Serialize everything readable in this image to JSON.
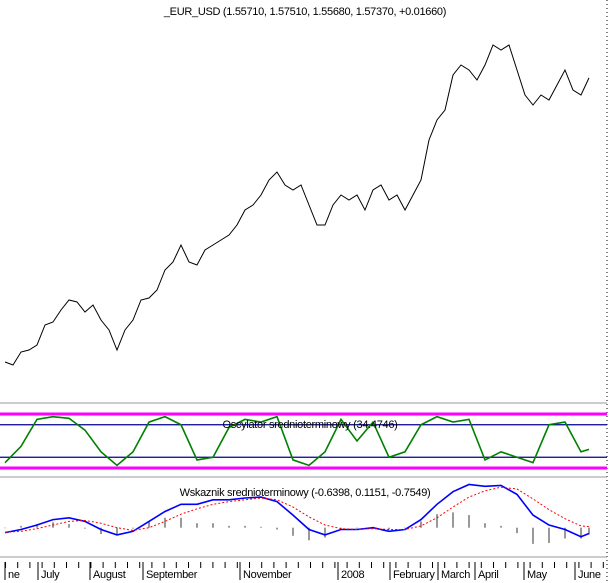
{
  "chart_data": [
    {
      "type": "line",
      "title": "_EUR_USD (1.55710, 1.57510, 1.55680, 1.57370, +0.01660)",
      "x": [
        0,
        1,
        2,
        3,
        4,
        5,
        6,
        7,
        8,
        9,
        10,
        11,
        12,
        13,
        14,
        15,
        16,
        17,
        18,
        19,
        20,
        21,
        22,
        23,
        24,
        25,
        26,
        27,
        28,
        29,
        30,
        31,
        32,
        33,
        34,
        35,
        36,
        37,
        38,
        39,
        40,
        41,
        42,
        43,
        44,
        45,
        46,
        47,
        48,
        49,
        50,
        51,
        52,
        53,
        54,
        55,
        56,
        57,
        58,
        59,
        60,
        61,
        62,
        63,
        64,
        65,
        66,
        67,
        68,
        69,
        70,
        71,
        72,
        73
      ],
      "values": [
        1.3464,
        1.344,
        1.3544,
        1.356,
        1.36,
        1.376,
        1.3784,
        1.388,
        1.396,
        1.3944,
        1.3864,
        1.392,
        1.38,
        1.372,
        1.356,
        1.372,
        1.38,
        1.396,
        1.3976,
        1.404,
        1.42,
        1.4264,
        1.44,
        1.4264,
        1.424,
        1.436,
        1.44,
        1.444,
        1.448,
        1.456,
        1.468,
        1.472,
        1.48,
        1.492,
        1.4984,
        1.488,
        1.484,
        1.488,
        1.472,
        1.456,
        1.456,
        1.472,
        1.48,
        1.476,
        1.48,
        1.468,
        1.484,
        1.488,
        1.476,
        1.48,
        1.468,
        1.48,
        1.492,
        1.524,
        1.54,
        1.548,
        1.576,
        1.584,
        1.58,
        1.572,
        1.584,
        1.6,
        1.596,
        1.6,
        1.58,
        1.56,
        1.552,
        1.56,
        1.556,
        1.568,
        1.58,
        1.564,
        1.56,
        1.5737
      ],
      "color": "#000000",
      "xlim": [
        0,
        73
      ],
      "ylim": [
        1.32,
        1.62
      ]
    },
    {
      "type": "line",
      "title": "Oscylator srednioterminowy (34.4746)",
      "x": [
        0,
        2,
        4,
        6,
        8,
        10,
        12,
        14,
        16,
        18,
        20,
        22,
        24,
        26,
        28,
        30,
        32,
        34,
        36,
        38,
        40,
        42,
        44,
        46,
        48,
        50,
        52,
        54,
        56,
        58,
        60,
        62,
        64,
        66,
        68,
        70,
        72,
        73
      ],
      "values": [
        10,
        40,
        90,
        95,
        92,
        70,
        30,
        5,
        30,
        85,
        95,
        80,
        15,
        20,
        75,
        90,
        85,
        95,
        15,
        5,
        30,
        90,
        50,
        85,
        20,
        30,
        80,
        95,
        85,
        90,
        15,
        30,
        20,
        10,
        80,
        85,
        30,
        34.4746
      ],
      "color": "#008000",
      "levels": [
        {
          "value": 100,
          "color": "#ff00ff"
        },
        {
          "value": 80,
          "color": "#00008b"
        },
        {
          "value": 20,
          "color": "#00008b"
        },
        {
          "value": 0,
          "color": "#ff00ff"
        }
      ],
      "xlim": [
        0,
        73
      ],
      "ylim": [
        -11,
        111
      ]
    },
    {
      "type": "line",
      "title": "Wskaznik srednioterminowy (-0.6398, 0.1151, -0.7549)",
      "x": [
        0,
        2,
        4,
        6,
        8,
        10,
        12,
        14,
        16,
        18,
        20,
        22,
        24,
        26,
        28,
        30,
        32,
        34,
        36,
        38,
        40,
        42,
        44,
        46,
        48,
        50,
        52,
        54,
        56,
        58,
        60,
        62,
        64,
        66,
        68,
        70,
        72,
        73
      ],
      "series": [
        {
          "type": "bar",
          "color": "#999999",
          "values": [
            -0.05,
            0.2,
            0.4,
            0.6,
            0.4,
            -0.1,
            -0.7,
            -0.8,
            -0.1,
            0.7,
            1.1,
            1.1,
            0.5,
            0.5,
            0.2,
            0.2,
            0.1,
            -0.2,
            -0.9,
            -1.4,
            -1.1,
            -0.1,
            0.0,
            0.1,
            -0.2,
            0.0,
            0.7,
            1.5,
            1.7,
            1.4,
            0.5,
            0.2,
            -0.6,
            -1.8,
            -1.7,
            -1.2,
            -1.2,
            -0.7549
          ]
        },
        {
          "type": "line",
          "color": "#0000ff",
          "values": [
            -0.55,
            -0.2,
            0.3,
            0.9,
            1.1,
            0.7,
            -0.2,
            -0.8,
            -0.4,
            0.7,
            1.8,
            2.6,
            2.6,
            3.1,
            3.1,
            3.3,
            3.4,
            2.9,
            1.4,
            -0.2,
            -0.8,
            -0.2,
            -0.2,
            0,
            -0.4,
            -0.2,
            0.9,
            2.6,
            4.0,
            4.8,
            4.6,
            4.7,
            3.7,
            1.4,
            0.3,
            -0.2,
            -1.0,
            -0.6398
          ]
        },
        {
          "type": "line",
          "color": "#ff0000",
          "dash": true,
          "values": [
            -0.5,
            -0.4,
            -0.1,
            0.3,
            0.7,
            0.8,
            0.5,
            0.0,
            -0.3,
            0.0,
            0.7,
            1.5,
            2.1,
            2.6,
            2.9,
            3.1,
            3.3,
            3.1,
            2.3,
            1.2,
            0.3,
            -0.1,
            -0.2,
            -0.1,
            -0.2,
            -0.2,
            0.2,
            1.1,
            2.3,
            3.4,
            4.1,
            4.5,
            4.3,
            3.2,
            2.0,
            1.0,
            0.2,
            0.1151
          ]
        }
      ],
      "xlim": [
        0,
        73
      ],
      "ylim": [
        -2.7,
        5.3
      ],
      "xticks": [
        {
          "value": 0,
          "label": "ne"
        },
        {
          "value": 4.125,
          "label": "July"
        },
        {
          "value": 10.625,
          "label": "August"
        },
        {
          "value": 17.25,
          "label": "September"
        },
        {
          "value": 29.375,
          "label": "November"
        },
        {
          "value": 41.625,
          "label": "2008"
        },
        {
          "value": 48.125,
          "label": "February"
        },
        {
          "value": 54.125,
          "label": "March"
        },
        {
          "value": 58.75,
          "label": "April"
        },
        {
          "value": 64.875,
          "label": "May"
        },
        {
          "value": 71.25,
          "label": "June"
        }
      ]
    }
  ]
}
